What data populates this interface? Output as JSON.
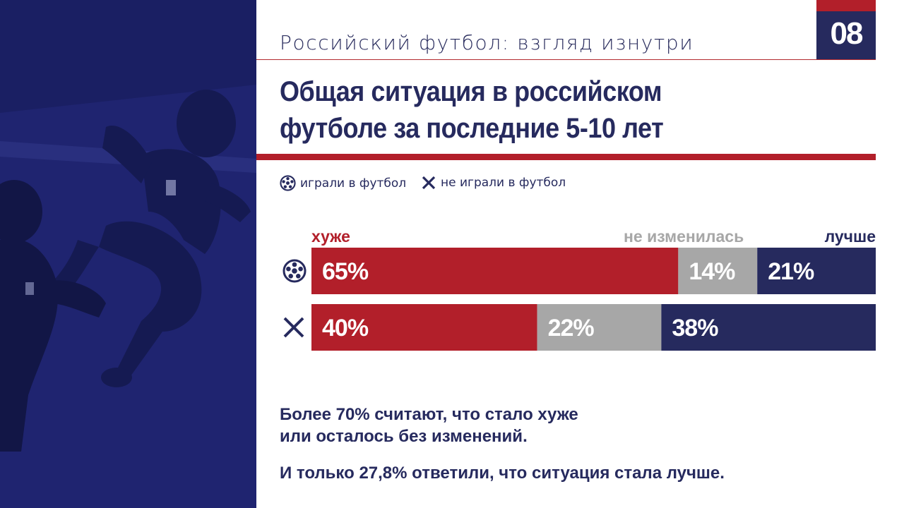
{
  "header": {
    "subtitle": "Российский футбол: взгляд изнутри",
    "page_number": "08",
    "title_line1": "Общая ситуация в российском",
    "title_line2": "футболе за последние 5-10 лет"
  },
  "legend": [
    {
      "icon": "soccer-ball-icon",
      "label": "играли в футбол"
    },
    {
      "icon": "cross-icon",
      "label": "не играли в футбол"
    }
  ],
  "chart_data": {
    "type": "bar",
    "orientation": "horizontal",
    "stacked": true,
    "percent_stacked": true,
    "categories": [
      "играли в футбол",
      "не играли в футбол"
    ],
    "category_icons": [
      "soccer-ball-icon",
      "cross-icon"
    ],
    "series": [
      {
        "name": "хуже",
        "values": [
          65,
          40
        ],
        "labels": [
          "65%",
          "40%"
        ],
        "color": "#b21f2a"
      },
      {
        "name": "не изменилась",
        "values": [
          14,
          22
        ],
        "labels": [
          "14%",
          "22%"
        ],
        "color": "#a7a7a7"
      },
      {
        "name": "лучше",
        "values": [
          21,
          38
        ],
        "labels": [
          "21%",
          "38%"
        ],
        "color": "#262a5e"
      }
    ],
    "xlim": [
      0,
      100
    ],
    "grid": false,
    "legend_position": "top"
  },
  "insights": {
    "line1": "Более 70% считают, что стало хуже",
    "line2": "или осталось без изменений.",
    "line3": "И только 27,8% ответили, что ситуация стала лучше."
  },
  "colors": {
    "navy": "#262a5e",
    "red": "#b21f2a",
    "grey": "#a7a7a7",
    "photo_tint": "#1f2470"
  }
}
